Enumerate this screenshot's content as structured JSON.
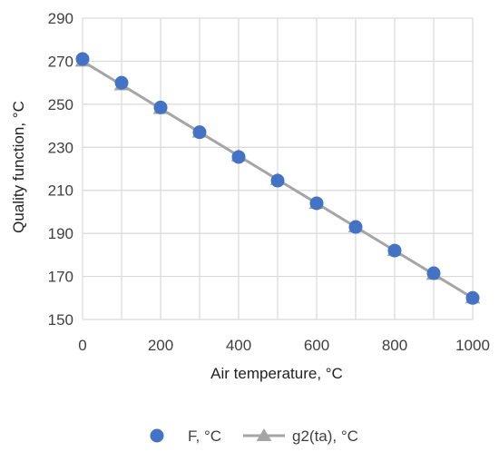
{
  "chart_data": {
    "type": "scatter",
    "xlabel": "Air temperature, °C",
    "ylabel": "Quality function, °C",
    "xlim": [
      0,
      1000
    ],
    "ylim": [
      150,
      290
    ],
    "x_ticks": [
      0,
      200,
      400,
      600,
      800,
      1000
    ],
    "y_ticks": [
      150,
      170,
      190,
      210,
      230,
      250,
      270,
      290
    ],
    "grid": true,
    "legend_position": "bottom",
    "series": [
      {
        "name": "F, °C",
        "kind": "scatter",
        "marker": "circle",
        "color": "#4472C4",
        "x": [
          0,
          100,
          200,
          300,
          400,
          500,
          600,
          700,
          800,
          900,
          1000
        ],
        "y": [
          271,
          260,
          248.5,
          237,
          225.5,
          214.5,
          204,
          193,
          182,
          171.5,
          160
        ]
      },
      {
        "name": "g2(ta), °C",
        "kind": "line",
        "marker": "triangle",
        "color": "#A5A5A5",
        "x": [
          0,
          100,
          200,
          300,
          400,
          500,
          600,
          700,
          800,
          900,
          1000
        ],
        "y": [
          270,
          259,
          248,
          237,
          226,
          215,
          204,
          193,
          182,
          171,
          160
        ]
      }
    ]
  }
}
